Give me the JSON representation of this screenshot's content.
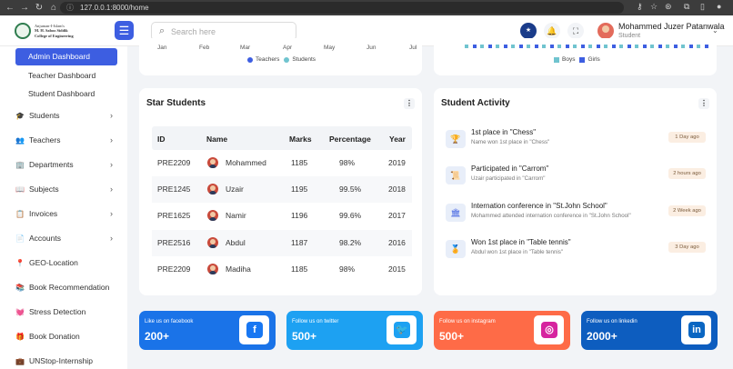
{
  "browser": {
    "url": "127.0.0.1:8000/home"
  },
  "header": {
    "logo_text": [
      "Anjuman-I-Islam's",
      "M. H. Saboo Siddik",
      "College of Engineering"
    ],
    "search_placeholder": "Search here",
    "user_name": "Mohammed Juzer Patanwala",
    "user_role": "Student"
  },
  "sidebar": {
    "active_item": "Admin Dashboard",
    "sub_items": [
      "Teacher Dashboard",
      "Student Dashboard"
    ],
    "items": [
      {
        "label": "Students",
        "icon": "graduation-cap-icon",
        "glyph": "🎓",
        "arrow": true
      },
      {
        "label": "Teachers",
        "icon": "chalkboard-teacher-icon",
        "glyph": "👥",
        "arrow": true
      },
      {
        "label": "Departments",
        "icon": "building-icon",
        "glyph": "🏢",
        "arrow": true
      },
      {
        "label": "Subjects",
        "icon": "book-reader-icon",
        "glyph": "📖",
        "arrow": true
      },
      {
        "label": "Invoices",
        "icon": "clipboard-icon",
        "glyph": "📋",
        "arrow": true
      },
      {
        "label": "Accounts",
        "icon": "file-invoice-icon",
        "glyph": "📄",
        "arrow": true
      },
      {
        "label": "GEO-Location",
        "icon": "map-pin-icon",
        "glyph": "📍",
        "arrow": false
      },
      {
        "label": "Book Recommendation",
        "icon": "books-icon",
        "glyph": "📚",
        "arrow": false
      },
      {
        "label": "Stress Detection",
        "icon": "heartbeat-icon",
        "glyph": "💓",
        "arrow": false
      },
      {
        "label": "Book Donation",
        "icon": "gift-icon",
        "glyph": "🎁",
        "arrow": false
      },
      {
        "label": "UNStop-Internship",
        "icon": "briefcase-icon",
        "glyph": "💼",
        "arrow": false
      }
    ]
  },
  "charts": {
    "line": {
      "months": [
        "Jan",
        "Feb",
        "Mar",
        "Apr",
        "May",
        "Jun",
        "Jul"
      ],
      "legend": [
        "Teachers",
        "Students"
      ]
    },
    "bar": {
      "legend": [
        "Boys",
        "Girls"
      ]
    }
  },
  "star_students": {
    "title": "Star Students",
    "columns": [
      "ID",
      "Name",
      "Marks",
      "Percentage",
      "Year"
    ],
    "rows": [
      {
        "id": "PRE2209",
        "name": "Mohammed",
        "marks": "1185",
        "percentage": "98%",
        "year": "2019"
      },
      {
        "id": "PRE1245",
        "name": "Uzair",
        "marks": "1195",
        "percentage": "99.5%",
        "year": "2018"
      },
      {
        "id": "PRE1625",
        "name": "Namir",
        "marks": "1196",
        "percentage": "99.6%",
        "year": "2017"
      },
      {
        "id": "PRE2516",
        "name": "Abdul",
        "marks": "1187",
        "percentage": "98.2%",
        "year": "2016"
      },
      {
        "id": "PRE2209",
        "name": "Madiha",
        "marks": "1185",
        "percentage": "98%",
        "year": "2015"
      }
    ]
  },
  "student_activity": {
    "title": "Student Activity",
    "items": [
      {
        "icon": "trophy-icon",
        "glyph": "🏆",
        "title": "1st place in \"Chess\"",
        "desc": "Name won 1st place in \"Chess\"",
        "time": "1 Day ago"
      },
      {
        "icon": "certificate-icon",
        "glyph": "📜",
        "title": "Participated in \"Carrom\"",
        "desc": "Uzair participated in \"Carrom\"",
        "time": "2 hours ago"
      },
      {
        "icon": "conference-icon",
        "glyph": "🏛",
        "title": "Internation conference in \"St.John School\"",
        "desc": "Mohammed attended internation conference in \"St.John School\"",
        "time": "2 Week ago"
      },
      {
        "icon": "medal-icon",
        "glyph": "🏅",
        "title": "Won 1st place in \"Table tennis\"",
        "desc": "Abdul won 1st place in \"Table tennis\"",
        "time": "3 Day ago"
      }
    ]
  },
  "social": [
    {
      "label": "Like us on facebook",
      "count": "200+",
      "color": "#1a73e8",
      "icon": "facebook-icon",
      "glyph": "f",
      "icon_color": "#1877f2"
    },
    {
      "label": "Follow us on twitter",
      "count": "500+",
      "color": "#1da1f2",
      "icon": "twitter-icon",
      "glyph": "🐦",
      "icon_color": "#1da1f2"
    },
    {
      "label": "Follow us on instagram",
      "count": "500+",
      "color": "#fe6b47",
      "icon": "instagram-icon",
      "glyph": "◎",
      "icon_color": "#d6249f"
    },
    {
      "label": "Follow us on linkedin",
      "count": "2000+",
      "color": "#0d5dbf",
      "icon": "linkedin-icon",
      "glyph": "in",
      "icon_color": "#0a66c2"
    }
  ],
  "colors": {
    "primary": "#3d5ee1",
    "teachers": "#3d5ee1",
    "students": "#70c4cf",
    "boys": "#70c4cf",
    "girls": "#3d5ee1"
  }
}
